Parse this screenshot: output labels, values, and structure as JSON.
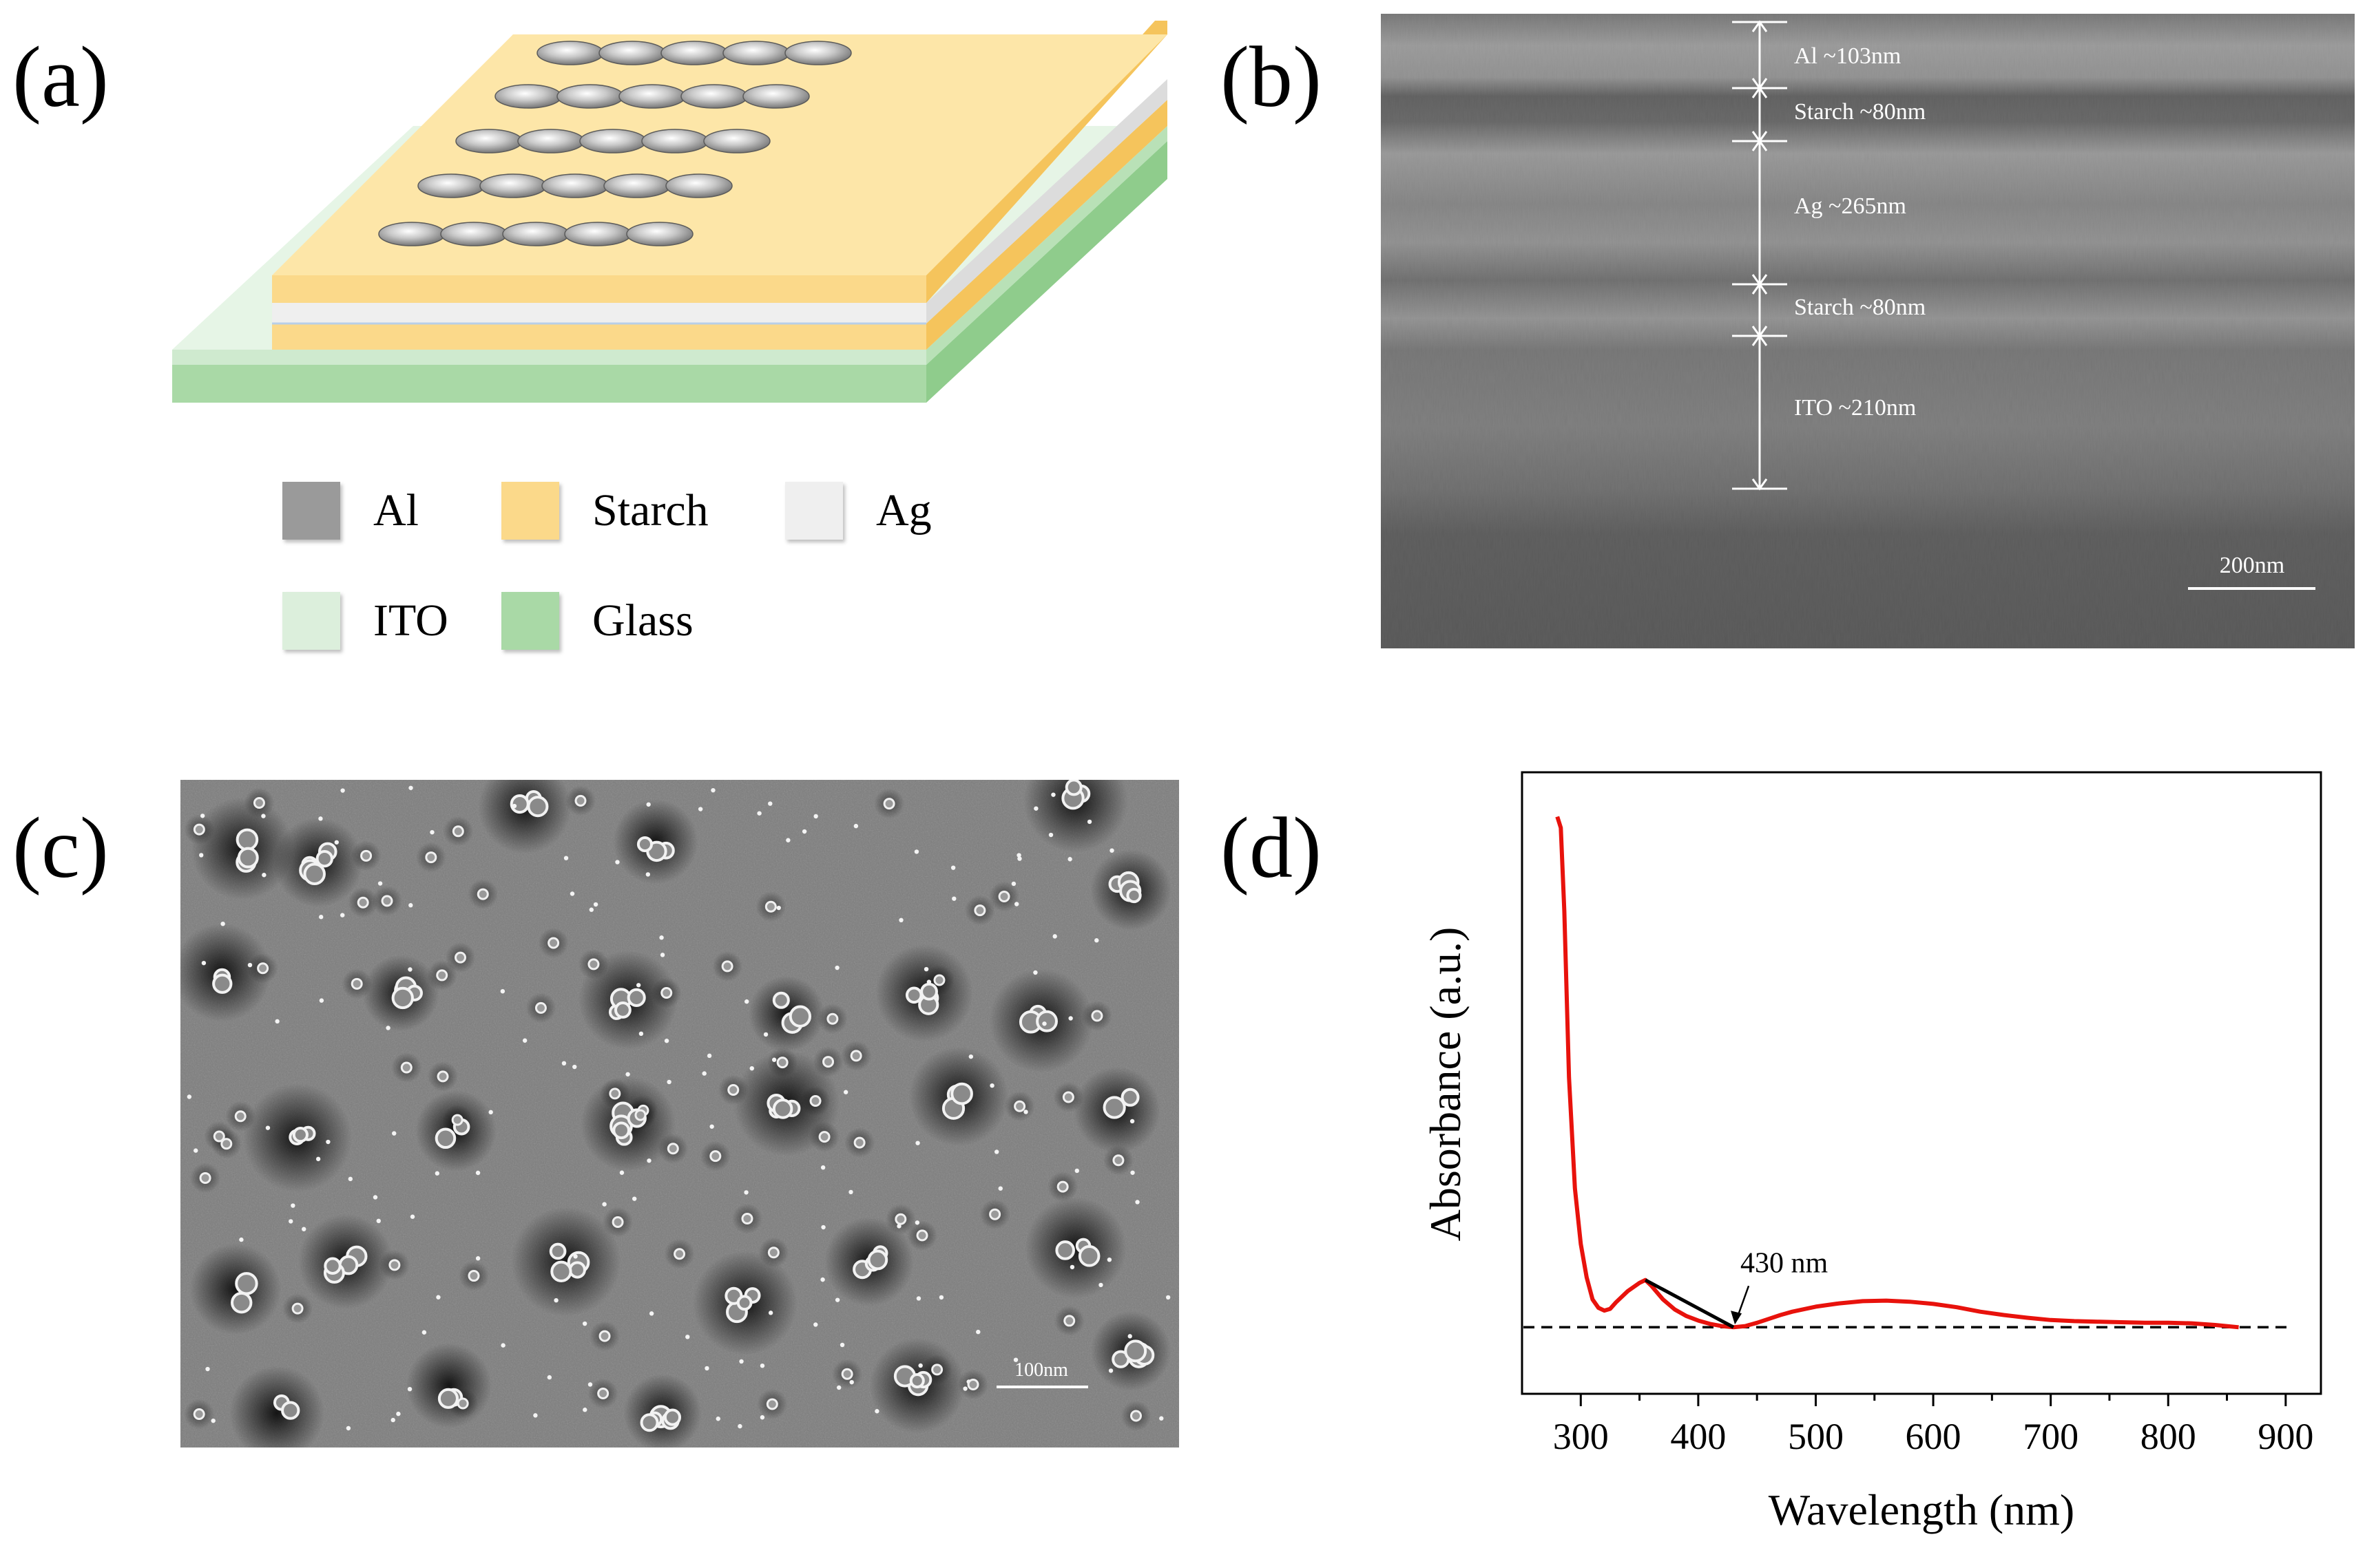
{
  "panels": {
    "a": {
      "letter": "(a)",
      "legend": [
        {
          "label": "Al",
          "color": "#9a9a9a"
        },
        {
          "label": "Starch",
          "color": "#fbd98a"
        },
        {
          "label": "Ag",
          "color": "#efefef"
        },
        {
          "label": "ITO",
          "color": "#dcefdc"
        },
        {
          "label": "Glass",
          "color": "#a9d9a6"
        }
      ]
    },
    "b": {
      "letter": "(b)",
      "layers": [
        {
          "label": "Al ~103nm"
        },
        {
          "label": "Starch ~80nm"
        },
        {
          "label": "Ag ~265nm"
        },
        {
          "label": "Starch ~80nm"
        },
        {
          "label": "ITO ~210nm"
        }
      ],
      "scale_bar": "200nm"
    },
    "c": {
      "letter": "(c)",
      "scale_bar": "100nm"
    },
    "d": {
      "letter": "(d)"
    }
  },
  "chart_data": {
    "type": "line",
    "xlabel": "Wavelength (nm)",
    "ylabel": "Absorbance (a.u.)",
    "xlim": [
      250,
      930
    ],
    "ylim": [
      -0.12,
      1.0
    ],
    "xticks": [
      300,
      400,
      500,
      600,
      700,
      800,
      900
    ],
    "y_ticks_shown": false,
    "grid": false,
    "baseline_y": 0,
    "annotation": {
      "text": "430 nm",
      "x": 430,
      "y": 0
    },
    "tangent_line": {
      "x": [
        355,
        430
      ],
      "y": [
        0.085,
        0
      ]
    },
    "series": [
      {
        "color": "#e8120c",
        "x": [
          280,
          283,
          286,
          290,
          295,
          300,
          305,
          310,
          315,
          320,
          325,
          330,
          340,
          350,
          355,
          360,
          370,
          380,
          390,
          400,
          410,
          420,
          430,
          440,
          450,
          460,
          470,
          480,
          500,
          520,
          540,
          560,
          580,
          600,
          620,
          640,
          660,
          680,
          700,
          720,
          740,
          760,
          780,
          800,
          820,
          840,
          860
        ],
        "y": [
          0.92,
          0.9,
          0.75,
          0.45,
          0.25,
          0.15,
          0.09,
          0.05,
          0.035,
          0.03,
          0.033,
          0.045,
          0.065,
          0.08,
          0.085,
          0.075,
          0.05,
          0.032,
          0.02,
          0.012,
          0.006,
          0.002,
          0.0,
          0.002,
          0.008,
          0.015,
          0.022,
          0.028,
          0.037,
          0.043,
          0.047,
          0.048,
          0.046,
          0.042,
          0.036,
          0.028,
          0.022,
          0.017,
          0.013,
          0.011,
          0.01,
          0.009,
          0.008,
          0.008,
          0.007,
          0.004,
          0.0
        ]
      }
    ]
  }
}
